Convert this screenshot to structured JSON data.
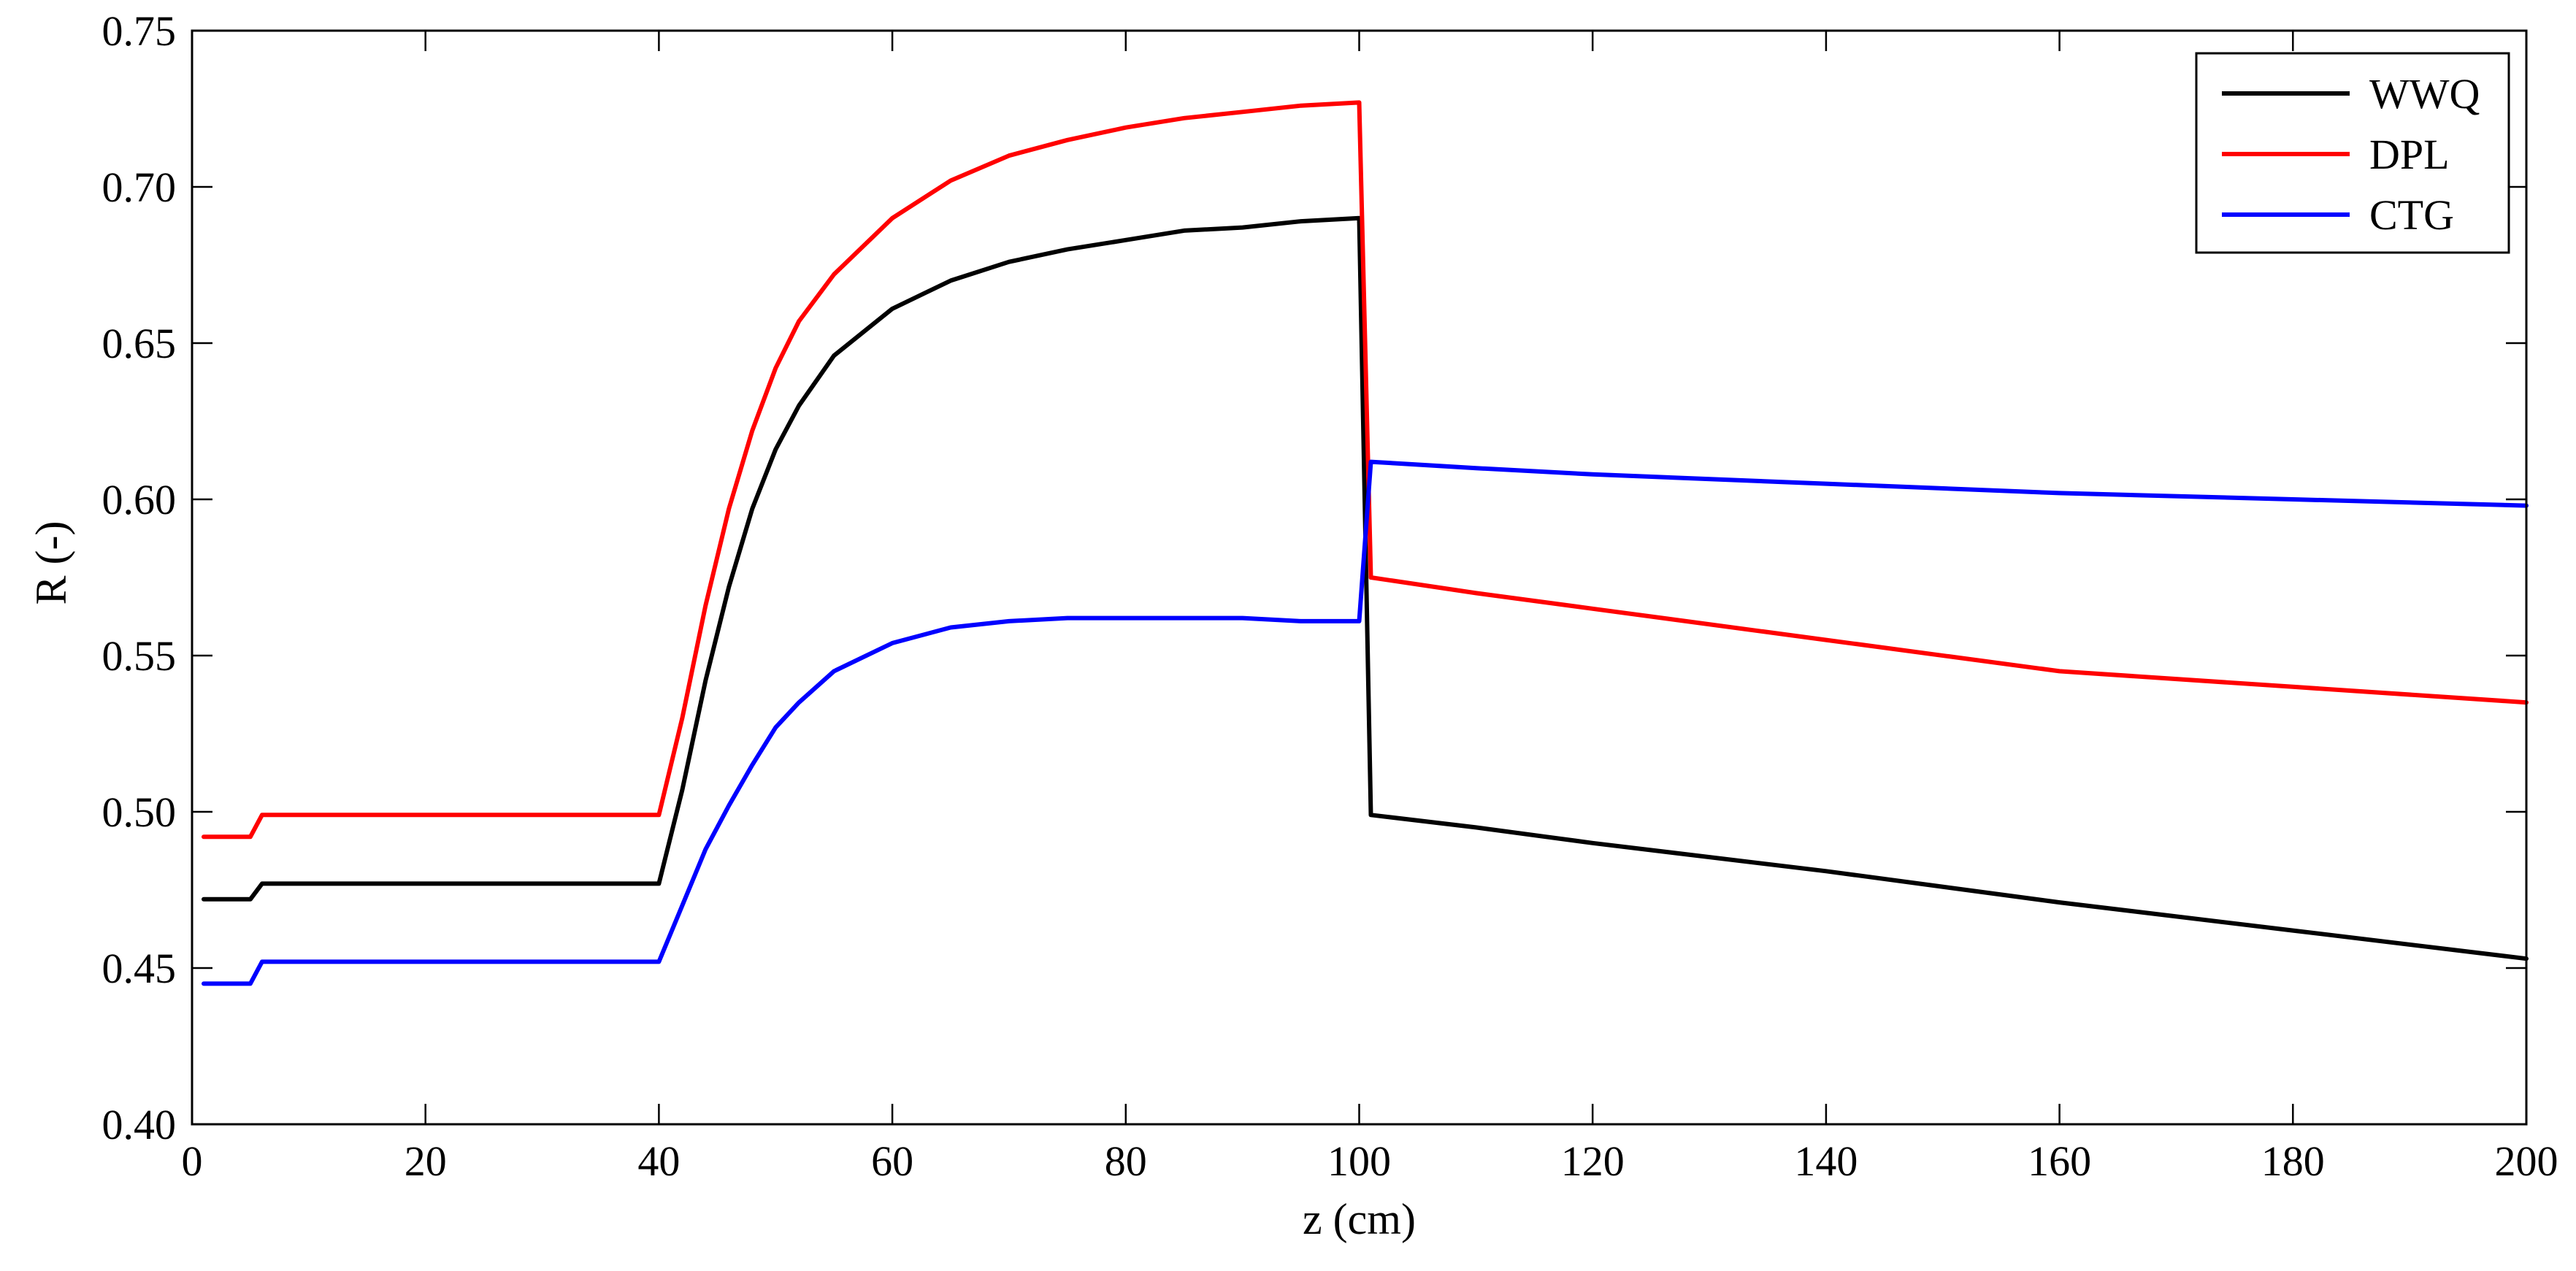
{
  "chart_data": {
    "type": "line",
    "title": "",
    "xlabel": "z (cm)",
    "ylabel": "R (-)",
    "xlim": [
      0,
      200
    ],
    "ylim": [
      0.4,
      0.75
    ],
    "xticks": [
      0,
      20,
      40,
      60,
      80,
      100,
      120,
      140,
      160,
      180,
      200
    ],
    "yticks": [
      0.4,
      0.45,
      0.5,
      0.55,
      0.6,
      0.65,
      0.7,
      0.75
    ],
    "xtick_labels": [
      "0",
      "20",
      "40",
      "60",
      "80",
      "100",
      "120",
      "140",
      "160",
      "180",
      "200"
    ],
    "ytick_labels": [
      "0.40",
      "0.45",
      "0.50",
      "0.55",
      "0.60",
      "0.65",
      "0.70",
      "0.75"
    ],
    "grid": false,
    "legend_position": "top-right",
    "series": [
      {
        "name": "WWQ",
        "color": "#000000",
        "x": [
          1,
          5,
          6,
          40,
          42,
          44,
          46,
          48,
          50,
          52,
          55,
          60,
          65,
          70,
          75,
          80,
          85,
          90,
          95,
          100,
          101,
          110,
          120,
          140,
          160,
          180,
          200
        ],
        "y": [
          0.472,
          0.472,
          0.477,
          0.477,
          0.507,
          0.542,
          0.572,
          0.597,
          0.616,
          0.63,
          0.646,
          0.661,
          0.67,
          0.676,
          0.68,
          0.683,
          0.686,
          0.687,
          0.689,
          0.69,
          0.499,
          0.495,
          0.49,
          0.481,
          0.471,
          0.462,
          0.453
        ]
      },
      {
        "name": "DPL",
        "color": "#ff0000",
        "x": [
          1,
          5,
          6,
          40,
          42,
          44,
          46,
          48,
          50,
          52,
          55,
          60,
          65,
          70,
          75,
          80,
          85,
          90,
          95,
          100,
          101,
          110,
          120,
          140,
          160,
          180,
          200
        ],
        "y": [
          0.492,
          0.492,
          0.499,
          0.499,
          0.53,
          0.566,
          0.597,
          0.622,
          0.642,
          0.657,
          0.672,
          0.69,
          0.702,
          0.71,
          0.715,
          0.719,
          0.722,
          0.724,
          0.726,
          0.727,
          0.575,
          0.57,
          0.565,
          0.555,
          0.545,
          0.54,
          0.535
        ]
      },
      {
        "name": "CTG",
        "color": "#0000ff",
        "x": [
          1,
          5,
          6,
          40,
          42,
          44,
          46,
          48,
          50,
          52,
          55,
          60,
          65,
          70,
          75,
          80,
          85,
          90,
          95,
          100,
          101,
          110,
          120,
          140,
          160,
          180,
          200
        ],
        "y": [
          0.445,
          0.445,
          0.452,
          0.452,
          0.47,
          0.488,
          0.502,
          0.515,
          0.527,
          0.535,
          0.545,
          0.554,
          0.559,
          0.561,
          0.562,
          0.562,
          0.562,
          0.562,
          0.561,
          0.561,
          0.612,
          0.61,
          0.608,
          0.605,
          0.602,
          0.6,
          0.598
        ]
      }
    ]
  }
}
